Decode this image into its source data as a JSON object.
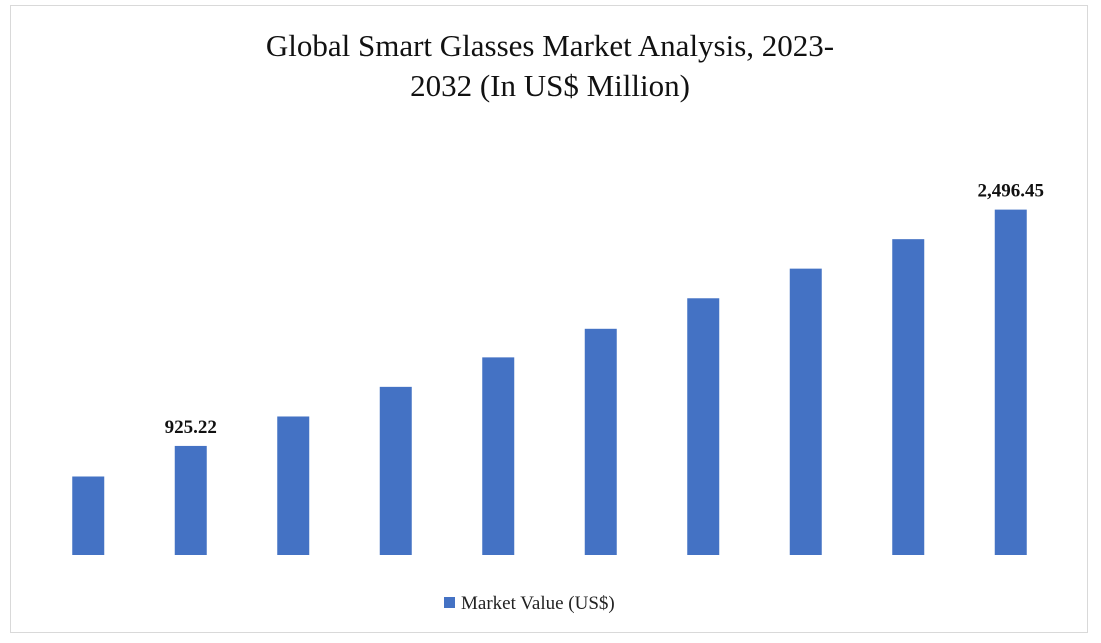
{
  "chart_data": {
    "type": "bar",
    "title": "Global Smart Glasses Market Analysis, 2023-2032 (In US$ Million)",
    "categories": [
      null,
      null,
      null,
      null,
      null,
      null,
      null,
      null,
      null,
      null
    ],
    "series": [
      {
        "name": "Market Value (US$)",
        "color": "#4472c4",
        "values": [
          722,
          925.22,
          1121,
          1318,
          1514,
          1704,
          1907,
          2104,
          2300,
          2496.45
        ],
        "value_labels": [
          null,
          "925.22",
          null,
          null,
          null,
          null,
          null,
          null,
          null,
          "2,496.45"
        ]
      }
    ],
    "ylim": [
      200,
      2700
    ],
    "legend": "bottom"
  }
}
